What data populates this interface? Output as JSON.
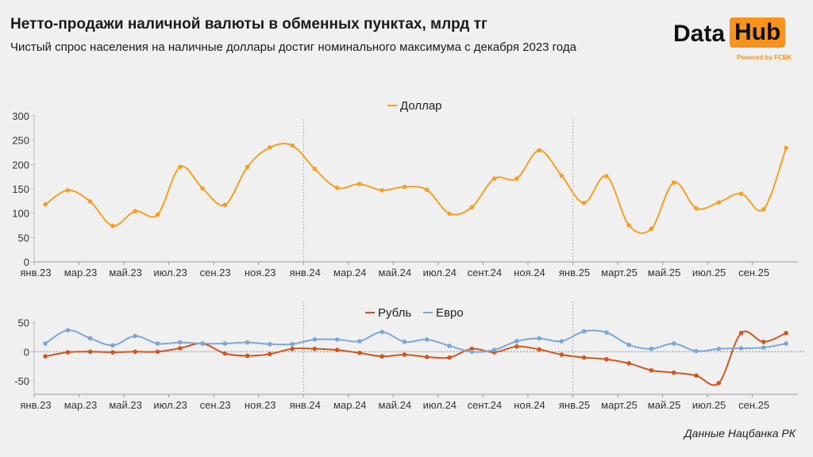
{
  "header": {
    "title": "Нетто-продажи наличной валюты в обменных пунктах, млрд тг",
    "subtitle": "Чистый спрос населения на наличные доллары достиг номинального максимума с декабря 2023 года"
  },
  "logo": {
    "text1": "Data",
    "text2": "Hub",
    "powered": "Powered by FCBK",
    "accent": "#f7941d"
  },
  "source": "Данные Нацбанка РК",
  "chart_data": [
    {
      "type": "line",
      "xlabels": [
        "янв.23",
        "мар.23",
        "май.23",
        "июл.23",
        "сен.23",
        "ноя.23",
        "янв.24",
        "мар.24",
        "май.24",
        "июл.24",
        "сент.24",
        "ноя.24",
        "янв.25",
        "март.25",
        "май.25",
        "июл.25",
        "сен.25"
      ],
      "x": [
        "2023-01",
        "2023-02",
        "2023-03",
        "2023-04",
        "2023-05",
        "2023-06",
        "2023-07",
        "2023-08",
        "2023-09",
        "2023-10",
        "2023-11",
        "2023-12",
        "2024-01",
        "2024-02",
        "2024-03",
        "2024-04",
        "2024-05",
        "2024-06",
        "2024-07",
        "2024-08",
        "2024-09",
        "2024-10",
        "2024-11",
        "2024-12",
        "2025-01",
        "2025-02",
        "2025-03",
        "2025-04",
        "2025-05",
        "2025-06",
        "2025-07",
        "2025-08",
        "2025-09",
        "2025-10"
      ],
      "ylim": [
        0,
        300
      ],
      "yticks": [
        0,
        50,
        100,
        150,
        200,
        250,
        300
      ],
      "legend": "top",
      "series": [
        {
          "name": "Доллар",
          "color": "#f4a024",
          "values": [
            118,
            147,
            124,
            74,
            104,
            97,
            195,
            151,
            117,
            195,
            235,
            239,
            191,
            152,
            160,
            147,
            154,
            148,
            99,
            112,
            171,
            171,
            229,
            177,
            121,
            176,
            75,
            68,
            163,
            110,
            122,
            140,
            108,
            234
          ]
        }
      ]
    },
    {
      "type": "line",
      "xlabels": [
        "янв.23",
        "мар.23",
        "май.23",
        "июл.23",
        "сен.23",
        "ноя.23",
        "янв.24",
        "мар.24",
        "май.24",
        "июл.24",
        "сент.24",
        "ноя.24",
        "янв.25",
        "март.25",
        "май.25",
        "июл.25",
        "сен.25"
      ],
      "ylim": [
        -73,
        50
      ],
      "yticks": [
        -50,
        0,
        50
      ],
      "legend": "top",
      "series": [
        {
          "name": "Рубль",
          "color": "#d2561c",
          "values": [
            -8,
            -1,
            0,
            -1,
            0,
            0,
            6,
            14,
            -3,
            -7,
            -4,
            5,
            5,
            3,
            -2,
            -8,
            -5,
            -9,
            -10,
            5,
            -1,
            9,
            4,
            -5,
            -10,
            -13,
            -20,
            -32,
            -36,
            -41,
            -54,
            32,
            17,
            32
          ]
        },
        {
          "name": "Евро",
          "color": "#7ba7d6",
          "values": [
            14,
            37,
            23,
            11,
            27,
            14,
            16,
            14,
            14,
            16,
            13,
            13,
            21,
            21,
            18,
            34,
            17,
            21,
            10,
            0,
            3,
            18,
            23,
            18,
            35,
            33,
            12,
            5,
            14,
            1,
            5,
            6,
            7,
            14
          ]
        }
      ]
    }
  ]
}
